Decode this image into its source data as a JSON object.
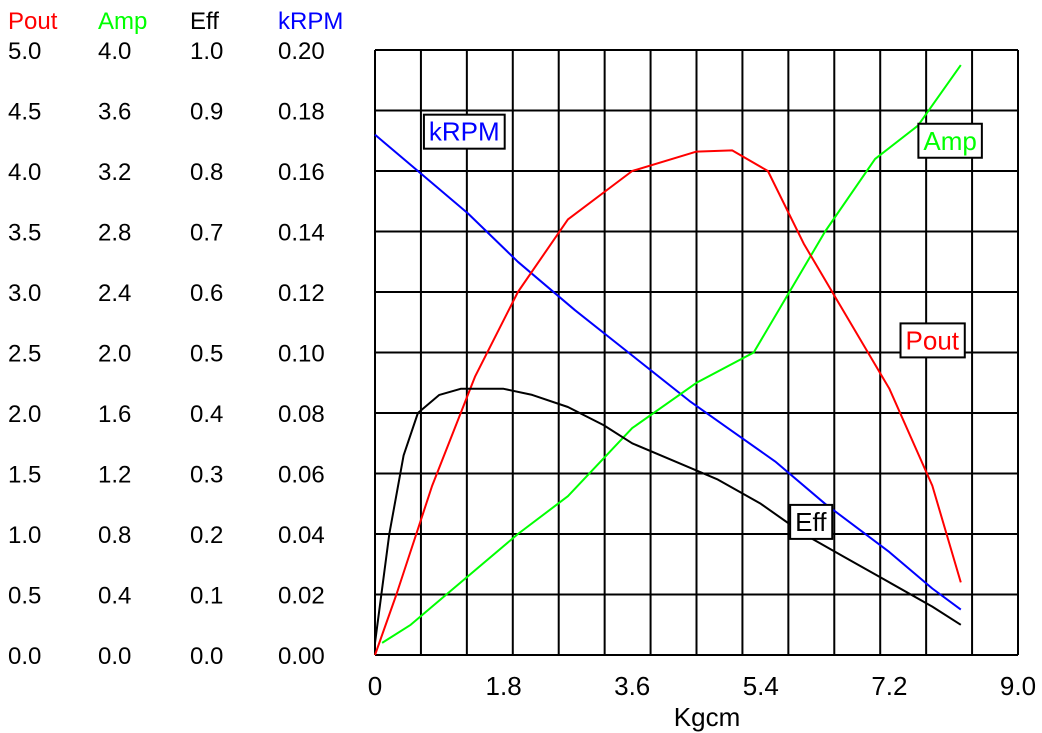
{
  "chart_data": {
    "type": "line",
    "xlabel": "Kgcm",
    "xlim": [
      0,
      9.0
    ],
    "x_ticks": [
      "0",
      "1.8",
      "3.6",
      "5.4",
      "7.2",
      "9.0"
    ],
    "grid": true,
    "axes": [
      {
        "key": "pout",
        "header": "Pout",
        "color": "#ff0000",
        "ylim": [
          0,
          5.0
        ],
        "ticks": [
          "0.0",
          "0.5",
          "1.0",
          "1.5",
          "2.0",
          "2.5",
          "3.0",
          "3.5",
          "4.0",
          "4.5",
          "5.0"
        ]
      },
      {
        "key": "amp",
        "header": "Amp",
        "color": "#00ff00",
        "ylim": [
          0,
          4.0
        ],
        "ticks": [
          "0.0",
          "0.4",
          "0.8",
          "1.2",
          "1.6",
          "2.0",
          "2.4",
          "2.8",
          "3.2",
          "3.6",
          "4.0"
        ]
      },
      {
        "key": "eff",
        "header": "Eff",
        "color": "#000000",
        "ylim": [
          0,
          1.0
        ],
        "ticks": [
          "0.0",
          "0.1",
          "0.2",
          "0.3",
          "0.4",
          "0.5",
          "0.6",
          "0.7",
          "0.8",
          "0.9",
          "1.0"
        ]
      },
      {
        "key": "krpm",
        "header": "kRPM",
        "color": "#0000ff",
        "ylim": [
          0,
          0.2
        ],
        "ticks": [
          "0.00",
          "0.02",
          "0.04",
          "0.06",
          "0.08",
          "0.10",
          "0.12",
          "0.14",
          "0.16",
          "0.18",
          "0.20"
        ]
      }
    ],
    "series": [
      {
        "name": "kRPM",
        "axis": "krpm",
        "color": "#0000ff",
        "points": [
          [
            0,
            0.172
          ],
          [
            0.6,
            0.16
          ],
          [
            1.3,
            0.146
          ],
          [
            2.0,
            0.13
          ],
          [
            2.8,
            0.114
          ],
          [
            3.6,
            0.099
          ],
          [
            4.4,
            0.084
          ],
          [
            5.0,
            0.074
          ],
          [
            5.6,
            0.064
          ],
          [
            6.3,
            0.05
          ],
          [
            7.2,
            0.034
          ],
          [
            7.8,
            0.022
          ],
          [
            8.2,
            0.015
          ]
        ]
      },
      {
        "name": "Amp",
        "axis": "amp",
        "color": "#00ff00",
        "points": [
          [
            0.1,
            0.08
          ],
          [
            0.5,
            0.2
          ],
          [
            1.0,
            0.4
          ],
          [
            2.0,
            0.8
          ],
          [
            2.7,
            1.05
          ],
          [
            3.6,
            1.5
          ],
          [
            4.5,
            1.8
          ],
          [
            5.3,
            2.0
          ],
          [
            5.8,
            2.4
          ],
          [
            6.3,
            2.8
          ],
          [
            7.0,
            3.28
          ],
          [
            7.6,
            3.5
          ],
          [
            8.2,
            3.9
          ]
        ]
      },
      {
        "name": "Pout",
        "axis": "pout",
        "color": "#ff0000",
        "points": [
          [
            0,
            0
          ],
          [
            0.3,
            0.5
          ],
          [
            0.8,
            1.4
          ],
          [
            1.4,
            2.3
          ],
          [
            2.0,
            3.0
          ],
          [
            2.7,
            3.6
          ],
          [
            3.6,
            4.0
          ],
          [
            4.5,
            4.16
          ],
          [
            5.0,
            4.17
          ],
          [
            5.5,
            4.0
          ],
          [
            6.0,
            3.4
          ],
          [
            6.5,
            2.9
          ],
          [
            7.2,
            2.2
          ],
          [
            7.8,
            1.4
          ],
          [
            8.2,
            0.6
          ]
        ]
      },
      {
        "name": "Eff",
        "axis": "eff",
        "color": "#000000",
        "points": [
          [
            0,
            0.02
          ],
          [
            0.2,
            0.2
          ],
          [
            0.4,
            0.33
          ],
          [
            0.6,
            0.4
          ],
          [
            0.9,
            0.43
          ],
          [
            1.2,
            0.44
          ],
          [
            1.8,
            0.44
          ],
          [
            2.2,
            0.43
          ],
          [
            2.7,
            0.41
          ],
          [
            3.2,
            0.38
          ],
          [
            3.6,
            0.35
          ],
          [
            4.2,
            0.32
          ],
          [
            4.8,
            0.29
          ],
          [
            5.4,
            0.25
          ],
          [
            6.0,
            0.2
          ],
          [
            6.6,
            0.16
          ],
          [
            7.2,
            0.12
          ],
          [
            7.8,
            0.08
          ],
          [
            8.2,
            0.05
          ]
        ]
      }
    ],
    "annotations": [
      {
        "text": "kRPM",
        "color": "#0000ff",
        "x": 1.25,
        "axis": "krpm",
        "y": 0.173
      },
      {
        "text": "Amp",
        "color": "#00ff00",
        "x": 8.05,
        "axis": "amp",
        "y": 3.4
      },
      {
        "text": "Pout",
        "color": "#ff0000",
        "x": 7.8,
        "axis": "pout",
        "y": 2.6
      },
      {
        "text": "Eff",
        "color": "#000000",
        "x": 6.1,
        "axis": "eff",
        "y": 0.22
      }
    ]
  }
}
